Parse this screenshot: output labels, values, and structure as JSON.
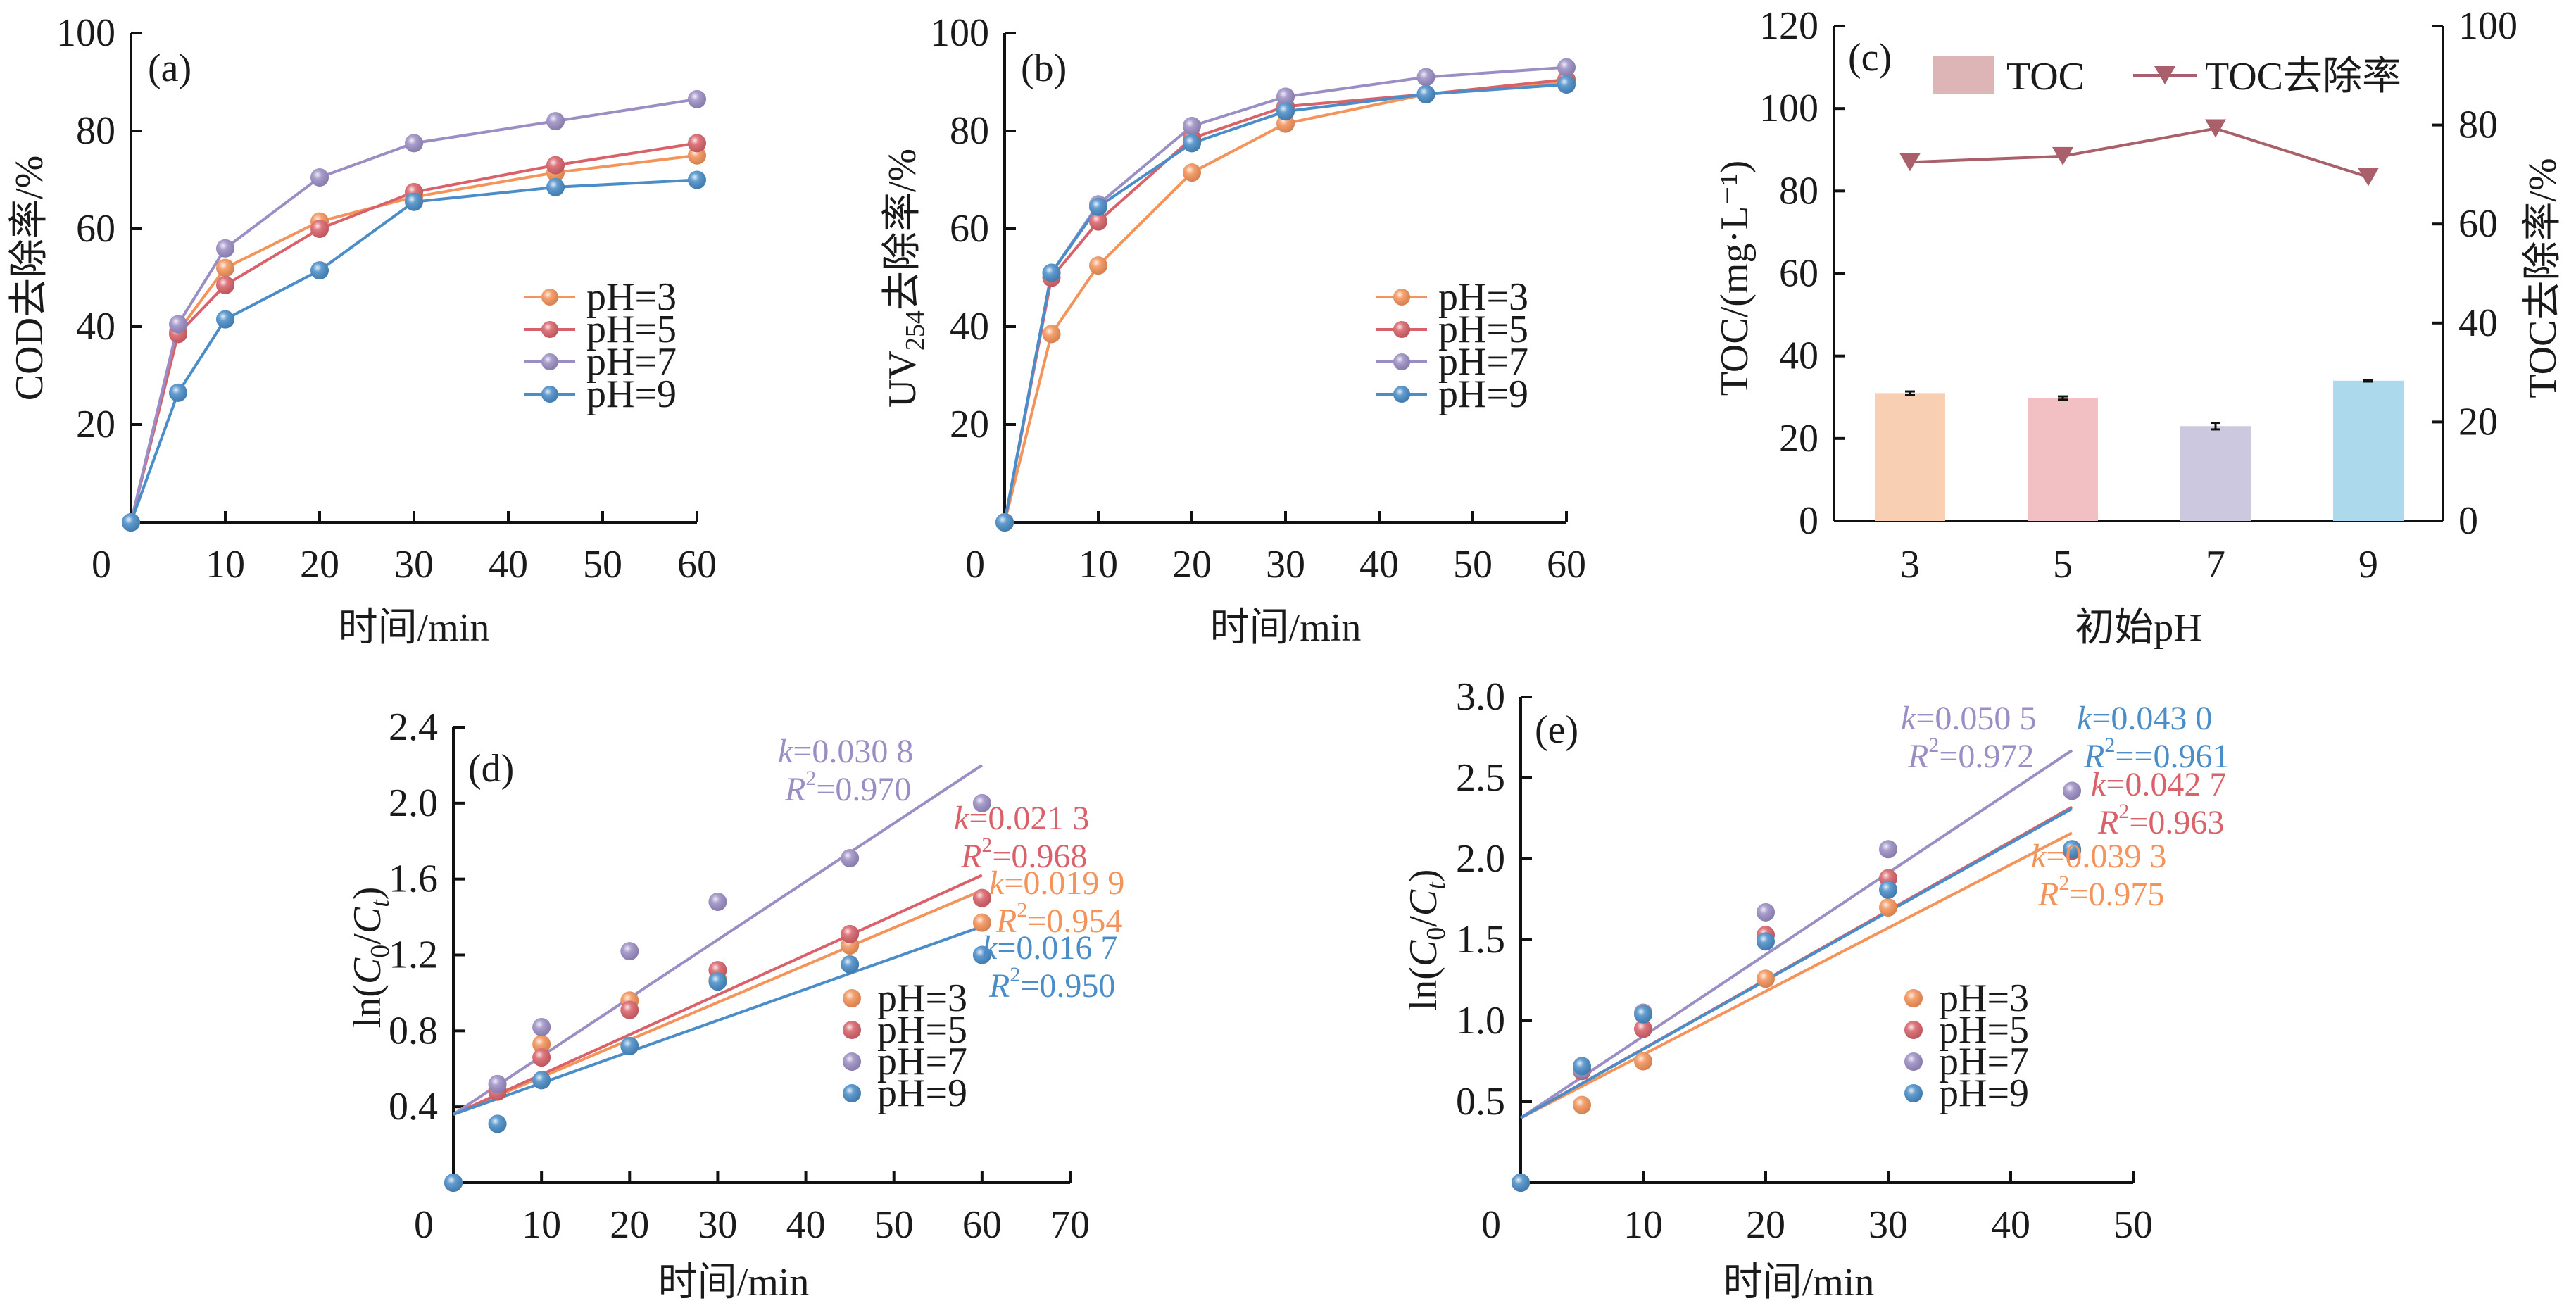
{
  "figure": {
    "colors": {
      "pH3": "#F4935A",
      "pH5": "#D9626A",
      "pH7": "#9B8EC4",
      "pH9": "#4A8DC8",
      "bar_pH3": "#F9CFB4",
      "bar_pH5": "#F2C0C3",
      "bar_pH7": "#CCC8E0",
      "bar_pH9": "#ADD9EC",
      "toc_legend_bar": "#DDB5B7",
      "toc_removal_line": "#A9606A"
    }
  },
  "chart_data": [
    {
      "id": "a",
      "type": "line",
      "panel_label": "(a)",
      "title": "",
      "xlabel": "时间/min",
      "ylabel": "COD去除率/%",
      "xlim": [
        0,
        60
      ],
      "ylim": [
        0,
        100
      ],
      "xticks": [
        0,
        10,
        20,
        30,
        40,
        50,
        60
      ],
      "yticks": [
        20,
        40,
        60,
        80,
        100
      ],
      "x": [
        0,
        5,
        10,
        20,
        30,
        45,
        60
      ],
      "legend_position": "center-right",
      "series": [
        {
          "name": "pH=3",
          "color_key": "pH3",
          "values": [
            0,
            39,
            52,
            61.5,
            66.5,
            71.5,
            75
          ]
        },
        {
          "name": "pH=5",
          "color_key": "pH5",
          "values": [
            0,
            38.5,
            48.5,
            60,
            67.5,
            73,
            77.5
          ]
        },
        {
          "name": "pH=7",
          "color_key": "pH7",
          "values": [
            0,
            40.5,
            56,
            70.5,
            77.5,
            82,
            86.5
          ]
        },
        {
          "name": "pH=9",
          "color_key": "pH9",
          "values": [
            0,
            26.5,
            41.5,
            51.5,
            65.5,
            68.5,
            70
          ]
        }
      ]
    },
    {
      "id": "b",
      "type": "line",
      "panel_label": "(b)",
      "title": "",
      "xlabel": "时间/min",
      "ylabel_main": "UV",
      "ylabel_sub": "254",
      "ylabel_rest": "去除率/%",
      "xlim": [
        0,
        60
      ],
      "ylim": [
        0,
        100
      ],
      "xticks": [
        0,
        10,
        20,
        30,
        40,
        50,
        60
      ],
      "yticks": [
        20,
        40,
        60,
        80,
        100
      ],
      "x": [
        0,
        5,
        10,
        20,
        30,
        45,
        60
      ],
      "legend_position": "center-right",
      "series": [
        {
          "name": "pH=3",
          "color_key": "pH3",
          "values": [
            0,
            38.5,
            52.5,
            71.5,
            81.5,
            87.5,
            90
          ]
        },
        {
          "name": "pH=5",
          "color_key": "pH5",
          "values": [
            0,
            50,
            61.5,
            78.5,
            85,
            87.5,
            90.5
          ]
        },
        {
          "name": "pH=7",
          "color_key": "pH7",
          "values": [
            0,
            51,
            65,
            81,
            87,
            91,
            93
          ]
        },
        {
          "name": "pH=9",
          "color_key": "pH9",
          "values": [
            0,
            51,
            64.5,
            77.5,
            84,
            87.5,
            89.5
          ]
        }
      ]
    },
    {
      "id": "c",
      "type": "bar",
      "panel_label": "(c)",
      "title": "",
      "xlabel": "初始pH",
      "ylabel_left": "TOC/(mg·L⁻¹)",
      "ylabel_right": "TOC去除率/%",
      "categories": [
        "3",
        "5",
        "7",
        "9"
      ],
      "ylim_left": [
        0,
        120
      ],
      "ylim_right": [
        0,
        100
      ],
      "yticks_left": [
        0,
        20,
        40,
        60,
        80,
        100,
        120
      ],
      "yticks_right": [
        0,
        20,
        40,
        60,
        80,
        100
      ],
      "legend_position": "top",
      "series": [
        {
          "name": "TOC",
          "kind": "bar",
          "axis": "left",
          "values": [
            31,
            29.8,
            23,
            34
          ],
          "errors": [
            0.4,
            0.4,
            0.8,
            0.2
          ],
          "color_keys": [
            "bar_pH3",
            "bar_pH5",
            "bar_pH7",
            "bar_pH9"
          ]
        },
        {
          "name": "TOC去除率",
          "kind": "line",
          "marker": "triangle-down",
          "axis": "right",
          "values": [
            72.5,
            73.7,
            79.3,
            69.5
          ],
          "color_key": "toc_removal_line"
        }
      ]
    },
    {
      "id": "d",
      "type": "scatter",
      "panel_label": "(d)",
      "title": "",
      "xlabel": "时间/min",
      "ylabel": "ln(C0/Ct)",
      "xlim": [
        0,
        70
      ],
      "ylim": [
        0,
        2.4
      ],
      "xticks": [
        0,
        10,
        20,
        30,
        40,
        50,
        60,
        70
      ],
      "yticks": [
        "0.4",
        "0.8",
        "1.2",
        "1.6",
        "2.0",
        "2.4"
      ],
      "x": [
        0,
        5,
        10,
        20,
        30,
        45,
        60
      ],
      "legend_position": "lower-right",
      "series": [
        {
          "name": "pH=3",
          "color_key": "pH3",
          "values": [
            0,
            0.49,
            0.73,
            0.96,
            1.07,
            1.25,
            1.37
          ],
          "fit": {
            "x": [
              0,
              60
            ],
            "y": [
              0.36,
              1.54
            ]
          },
          "k": "0.019 9",
          "r2": "0.954"
        },
        {
          "name": "pH=5",
          "color_key": "pH5",
          "values": [
            0,
            0.48,
            0.66,
            0.91,
            1.12,
            1.31,
            1.5
          ],
          "fit": {
            "x": [
              0,
              60
            ],
            "y": [
              0.36,
              1.62
            ]
          },
          "k": "0.021 3",
          "r2": "0.968"
        },
        {
          "name": "pH=7",
          "color_key": "pH7",
          "values": [
            0,
            0.52,
            0.82,
            1.22,
            1.48,
            1.71,
            2.0
          ],
          "fit": {
            "x": [
              0,
              60
            ],
            "y": [
              0.36,
              2.2
            ]
          },
          "k": "0.030 8",
          "r2": "0.970"
        },
        {
          "name": "pH=9",
          "color_key": "pH9",
          "values": [
            0,
            0.31,
            0.54,
            0.72,
            1.06,
            1.15,
            1.2
          ],
          "fit": {
            "x": [
              0,
              60
            ],
            "y": [
              0.36,
              1.35
            ]
          },
          "k": "0.016 7",
          "r2": "0.950"
        }
      ],
      "annotations": [
        {
          "color_key": "pH7",
          "k_text": "=0.030 8",
          "r2_text": "=0.970"
        },
        {
          "color_key": "pH5",
          "k_text": "=0.021 3",
          "r2_text": "=0.968"
        },
        {
          "color_key": "pH3",
          "k_text": "=0.019 9",
          "r2_text": "=0.954"
        },
        {
          "color_key": "pH9",
          "k_text": "=0.016 7",
          "r2_text": "=0.950"
        }
      ]
    },
    {
      "id": "e",
      "type": "scatter",
      "panel_label": "(e)",
      "title": "",
      "xlabel": "时间/min",
      "ylabel": "ln(C0/Ct)",
      "xlim": [
        0,
        50
      ],
      "ylim": [
        0,
        3.0
      ],
      "xticks": [
        0,
        10,
        20,
        30,
        40,
        50
      ],
      "yticks": [
        "0.5",
        "1.0",
        "1.5",
        "2.0",
        "2.5",
        "3.0"
      ],
      "x": [
        0,
        5,
        10,
        20,
        30,
        45
      ],
      "legend_position": "lower-right",
      "series": [
        {
          "name": "pH=3",
          "color_key": "pH3",
          "values": [
            0,
            0.48,
            0.75,
            1.26,
            1.7,
            2.06
          ],
          "fit": {
            "x": [
              0,
              45
            ],
            "y": [
              0.4,
              2.16
            ]
          },
          "k": "0.039 3",
          "r2": "0.975"
        },
        {
          "name": "pH=5",
          "color_key": "pH5",
          "values": [
            0,
            0.69,
            0.95,
            1.53,
            1.88,
            2.05
          ],
          "fit": {
            "x": [
              0,
              45
            ],
            "y": [
              0.4,
              2.32
            ]
          },
          "k": "0.042 7",
          "r2": "0.963"
        },
        {
          "name": "pH=7",
          "color_key": "pH7",
          "values": [
            0,
            0.7,
            1.05,
            1.67,
            2.06,
            2.42
          ],
          "fit": {
            "x": [
              0,
              45
            ],
            "y": [
              0.4,
              2.67
            ]
          },
          "k": "0.050 5",
          "r2": "0.972"
        },
        {
          "name": "pH=9",
          "color_key": "pH9",
          "values": [
            0,
            0.72,
            1.04,
            1.49,
            1.81,
            2.06
          ],
          "fit": {
            "x": [
              0,
              45
            ],
            "y": [
              0.4,
              2.31
            ]
          },
          "k": "0.043 0",
          "r2": "0.961"
        }
      ],
      "annotations": [
        {
          "color_key": "pH7",
          "k_text": "=0.050 5",
          "r2_text": "=0.972"
        },
        {
          "color_key": "pH9",
          "k_text": "=0.043 0",
          "r2_text": "==0.961"
        },
        {
          "color_key": "pH5",
          "k_text": "=0.042 7",
          "r2_text": "=0.963"
        },
        {
          "color_key": "pH3",
          "k_text": "=0.039 3",
          "r2_text": "=0.975"
        }
      ]
    }
  ]
}
